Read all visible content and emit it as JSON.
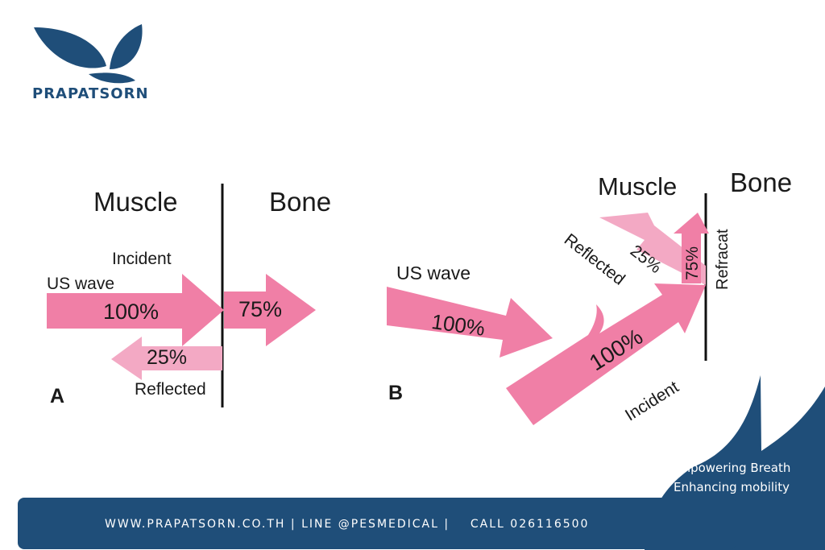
{
  "brand": {
    "name": "PRAPATSORN",
    "logo_icon": "butterfly-leaf-logo-icon",
    "color": "#1f4e79"
  },
  "diagram_a": {
    "letter": "A",
    "muscle": "Muscle",
    "bone": "Bone",
    "incident": "Incident",
    "us_wave": "US wave",
    "incident_pct": "100%",
    "transmitted_pct": "75%",
    "reflected_pct": "25%",
    "reflected": "Reflected"
  },
  "diagram_b": {
    "letter": "B",
    "muscle": "Muscle",
    "bone": "Bone",
    "us_wave": "US wave",
    "wave_pct": "100%",
    "incident_pct": "100%",
    "incident": "Incident",
    "reflected": "Reflected",
    "reflected_pct": "25%",
    "refracted_pct": "75%",
    "refracat": "Refracat"
  },
  "tagline": {
    "line1": "Empowering Breath",
    "line2": "Enhancing mobility"
  },
  "footer": {
    "text": "WWW.PRAPATSORN.CO.TH | LINE @PESMEDICAL |    CALL 026116500"
  },
  "colors": {
    "arrow_pink": "#f07fa6",
    "arrow_light": "#f3a9c4",
    "navy": "#1f4e79",
    "line": "#111111"
  }
}
